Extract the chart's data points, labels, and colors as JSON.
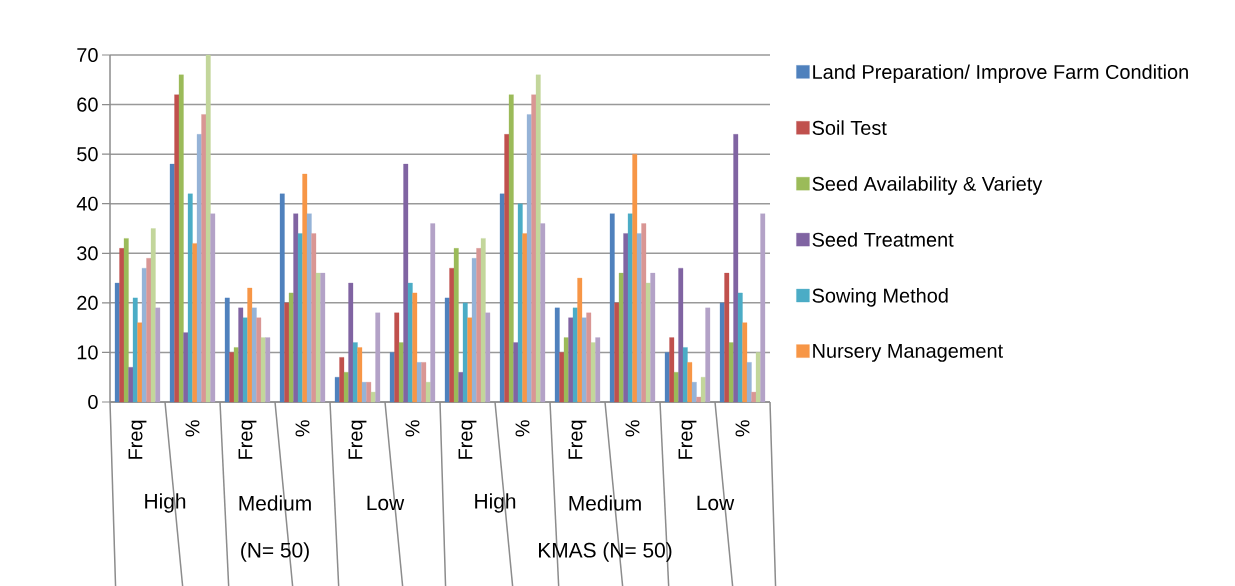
{
  "chart_data": {
    "type": "bar",
    "categories": [
      "Freq",
      "%",
      "Freq",
      "%",
      "Freq",
      "%",
      "Freq",
      "%",
      "Freq",
      "%",
      "Freq",
      "%"
    ],
    "series": [
      {
        "name": "Land Preparation/ Improve Farm Condition",
        "color": "#4f81bd",
        "values": [
          24,
          48,
          21,
          42,
          5,
          10,
          21,
          42,
          19,
          38,
          10,
          20
        ]
      },
      {
        "name": "Soil Test",
        "color": "#c0504d",
        "values": [
          31,
          62,
          10,
          20,
          9,
          18,
          27,
          54,
          10,
          20,
          13,
          26
        ]
      },
      {
        "name": "Seed Availability & Variety",
        "color": "#9bbb59",
        "values": [
          33,
          66,
          11,
          22,
          6,
          12,
          31,
          62,
          13,
          26,
          6,
          12
        ]
      },
      {
        "name": "Seed Treatment",
        "color": "#8064a2",
        "values": [
          7,
          14,
          19,
          38,
          24,
          48,
          6,
          12,
          17,
          34,
          27,
          54
        ]
      },
      {
        "name": "Sowing Method",
        "color": "#4bacc6",
        "values": [
          21,
          42,
          17,
          34,
          12,
          24,
          20,
          40,
          19,
          38,
          11,
          22
        ]
      },
      {
        "name": "Nursery Management",
        "color": "#f79646",
        "values": [
          16,
          32,
          23,
          46,
          11,
          22,
          17,
          34,
          25,
          50,
          8,
          16
        ]
      },
      {
        "color": "#95b3d7",
        "values": [
          27,
          54,
          19,
          38,
          4,
          8,
          29,
          58,
          17,
          34,
          4,
          8
        ]
      },
      {
        "color": "#d99694",
        "values": [
          29,
          58,
          17,
          34,
          4,
          8,
          31,
          62,
          18,
          36,
          1,
          2
        ]
      },
      {
        "color": "#c3d69b",
        "values": [
          35,
          70,
          13,
          26,
          2,
          4,
          33,
          66,
          12,
          24,
          5,
          10
        ]
      },
      {
        "color": "#b3a2c7",
        "values": [
          19,
          38,
          13,
          26,
          18,
          36,
          18,
          36,
          13,
          26,
          19,
          38
        ]
      }
    ],
    "ylim": [
      0,
      70
    ],
    "yticks": [
      0,
      10,
      20,
      30,
      40,
      50,
      60,
      70
    ],
    "grid": "y",
    "legend": "right",
    "annotations": [
      "High",
      "Medium",
      "Low",
      "High",
      "Medium",
      "Low",
      "(N= 50)",
      "KMAS  (N= 50)"
    ]
  }
}
